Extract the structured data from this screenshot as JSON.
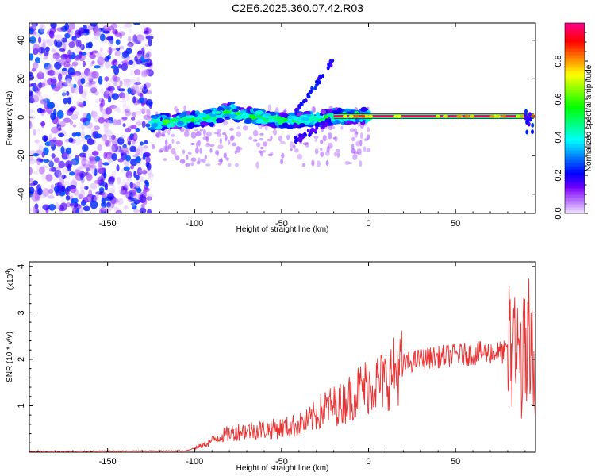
{
  "title": "C2E6.2025.360.07.42.R03",
  "chart_data": [
    {
      "type": "heatmap",
      "xlabel": "Height of straight line (km)",
      "ylabel": "Frequency (Hz)",
      "xlim": [
        -195,
        96
      ],
      "ylim": [
        -50,
        49
      ],
      "xticks": [
        -150,
        -100,
        -50,
        0,
        50
      ],
      "yticks": [
        -40,
        -20,
        0,
        20,
        40
      ],
      "colorbar": {
        "label": "Normalized spectral amplitude",
        "range": [
          0.0,
          1.0
        ],
        "ticks": [
          0.0,
          0.2,
          0.4,
          0.6,
          0.8
        ]
      },
      "main_line": {
        "x_start": -20,
        "x_end": 95,
        "frequency": 0.5,
        "amplitude": 1.0
      },
      "diffuse_noise_region": {
        "x_start": -195,
        "x_end": -125
      }
    },
    {
      "type": "line",
      "xlabel": "Height of straight line (km)",
      "ylabel": "SNR (10 * v/v)",
      "y_multiplier": "(x10^4)",
      "xlim": [
        -195,
        96
      ],
      "ylim": [
        0,
        4.1
      ],
      "xticks": [
        -150,
        -100,
        -50,
        0,
        50
      ],
      "yticks": [
        1,
        2,
        3,
        4
      ],
      "color": "#e83232",
      "envelope": {
        "x": [
          -195,
          -105,
          -95,
          -85,
          -75,
          -65,
          -55,
          -45,
          -35,
          -25,
          -15,
          -10,
          -5,
          0,
          5,
          10,
          15,
          20,
          30,
          40,
          50,
          60,
          70,
          80,
          85,
          90,
          95
        ],
        "y": [
          0.02,
          0.03,
          0.15,
          0.35,
          0.45,
          0.48,
          0.5,
          0.55,
          0.65,
          0.95,
          1.05,
          1.2,
          1.35,
          1.45,
          1.5,
          1.55,
          1.75,
          1.9,
          2.0,
          2.05,
          2.1,
          2.12,
          2.15,
          2.15,
          2.1,
          2.0,
          1.9
        ]
      }
    }
  ]
}
